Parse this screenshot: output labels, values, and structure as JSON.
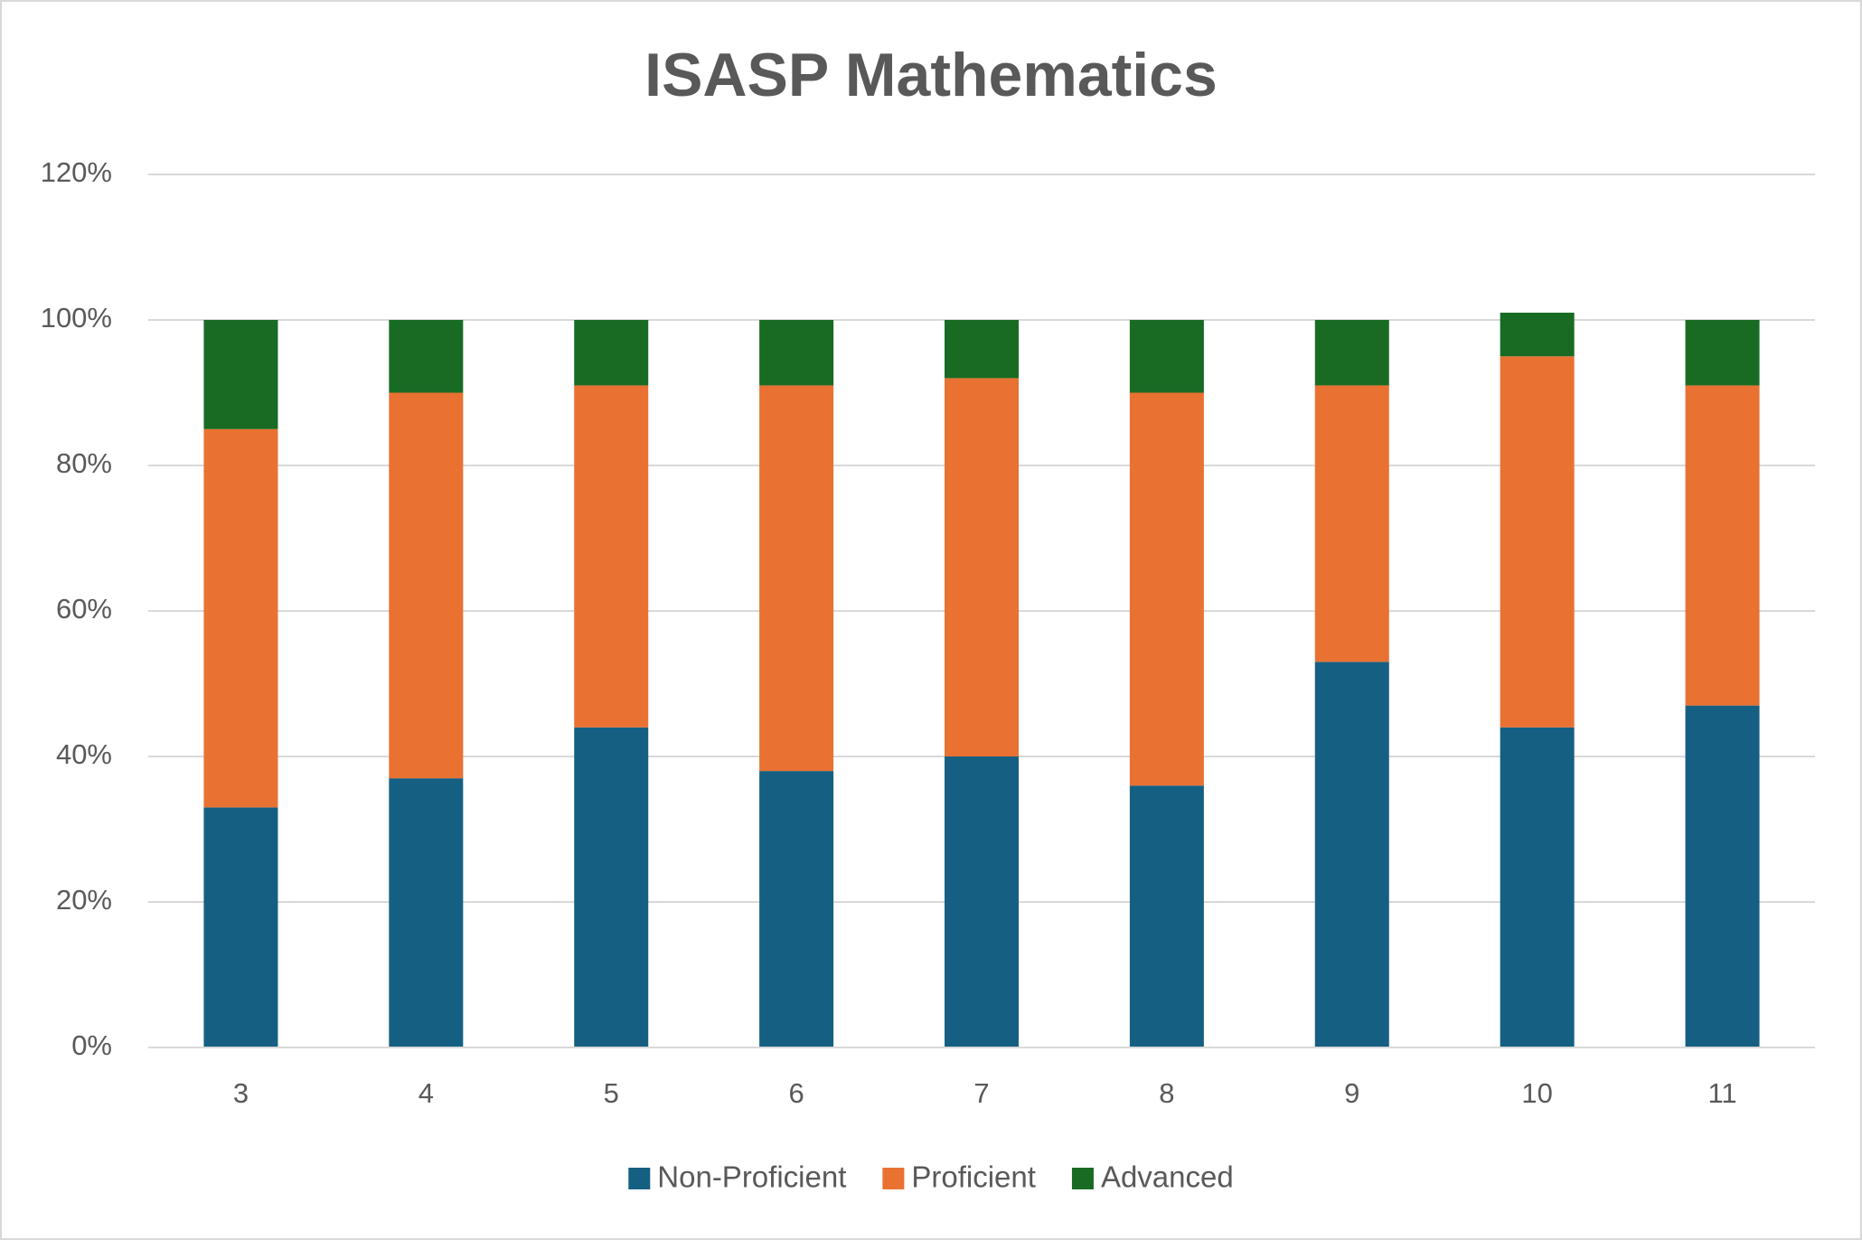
{
  "chart_data": {
    "type": "stacked_bar",
    "title": "ISASP Mathematics",
    "categories": [
      "3",
      "4",
      "5",
      "6",
      "7",
      "8",
      "9",
      "10",
      "11"
    ],
    "series": [
      {
        "name": "Non-Proficient",
        "color": "#156082",
        "values": [
          33,
          37,
          44,
          38,
          40,
          36,
          53,
          44,
          47
        ]
      },
      {
        "name": "Proficient",
        "color": "#e97132",
        "values": [
          52,
          53,
          47,
          53,
          52,
          54,
          38,
          51,
          44
        ]
      },
      {
        "name": "Advanced",
        "color": "#196b24",
        "values": [
          15,
          10,
          9,
          9,
          8,
          10,
          9,
          6,
          9
        ]
      }
    ],
    "ylim": [
      0,
      120
    ],
    "yticks": [
      {
        "value": 0,
        "label": "0%"
      },
      {
        "value": 20,
        "label": "20%"
      },
      {
        "value": 40,
        "label": "40%"
      },
      {
        "value": 60,
        "label": "60%"
      },
      {
        "value": 80,
        "label": "80%"
      },
      {
        "value": 100,
        "label": "100%"
      },
      {
        "value": 120,
        "label": "120%"
      }
    ],
    "grid": true,
    "legend": "bottom"
  }
}
